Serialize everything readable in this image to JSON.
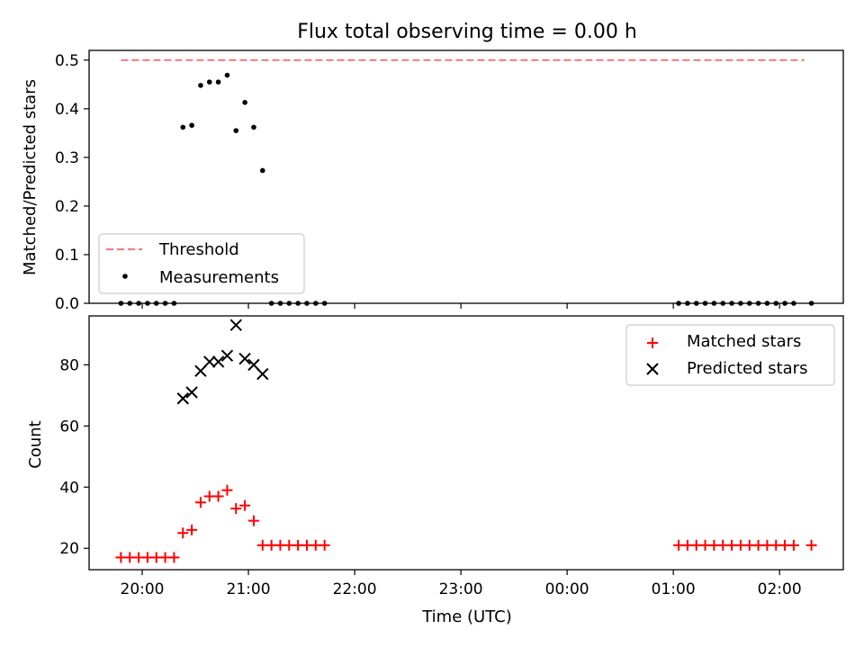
{
  "chart_data": [
    {
      "type": "scatter",
      "title": "Flux total observing time = 0.00 h",
      "ylabel": "Matched/Predicted stars",
      "xlabel": "",
      "x_ticks": [
        "20:00",
        "21:00",
        "22:00",
        "23:00",
        "00:00",
        "01:00",
        "02:00"
      ],
      "y_ticks": [
        "0.0",
        "0.1",
        "0.2",
        "0.3",
        "0.4",
        "0.5"
      ],
      "ylim": [
        0,
        0.52
      ],
      "x_range_hours": [
        19.5,
        26.6
      ],
      "threshold": {
        "name": "Threshold",
        "value": 0.5,
        "x_from": "19:48",
        "x_to": "02:14",
        "color": "#f08080"
      },
      "series": [
        {
          "name": "Measurements",
          "color": "#000000",
          "points": [
            [
              "19:48",
              0.0
            ],
            [
              "19:53",
              0.0
            ],
            [
              "19:58",
              0.0
            ],
            [
              "20:03",
              0.0
            ],
            [
              "20:08",
              0.0
            ],
            [
              "20:13",
              0.0
            ],
            [
              "20:18",
              0.0
            ],
            [
              "20:23",
              0.362
            ],
            [
              "20:28",
              0.366
            ],
            [
              "20:33",
              0.448
            ],
            [
              "20:38",
              0.455
            ],
            [
              "20:43",
              0.455
            ],
            [
              "20:48",
              0.469
            ],
            [
              "20:53",
              0.355
            ],
            [
              "20:58",
              0.413
            ],
            [
              "21:03",
              0.362
            ],
            [
              "21:08",
              0.273
            ],
            [
              "21:13",
              0.0
            ],
            [
              "21:18",
              0.0
            ],
            [
              "21:23",
              0.0
            ],
            [
              "21:28",
              0.0
            ],
            [
              "21:33",
              0.0
            ],
            [
              "21:38",
              0.0
            ],
            [
              "21:43",
              0.0
            ],
            [
              "01:03",
              0.0
            ],
            [
              "01:08",
              0.0
            ],
            [
              "01:13",
              0.0
            ],
            [
              "01:18",
              0.0
            ],
            [
              "01:23",
              0.0
            ],
            [
              "01:28",
              0.0
            ],
            [
              "01:33",
              0.0
            ],
            [
              "01:38",
              0.0
            ],
            [
              "01:43",
              0.0
            ],
            [
              "01:48",
              0.0
            ],
            [
              "01:53",
              0.0
            ],
            [
              "01:58",
              0.0
            ],
            [
              "02:03",
              0.0
            ],
            [
              "02:08",
              0.0
            ],
            [
              "02:18",
              0.0
            ]
          ]
        }
      ],
      "legend": {
        "placement": "lower-left",
        "entries": [
          "Threshold",
          "Measurements"
        ]
      }
    },
    {
      "type": "scatter",
      "title": "",
      "ylabel": "Count",
      "xlabel": "Time (UTC)",
      "x_ticks": [
        "20:00",
        "21:00",
        "22:00",
        "23:00",
        "00:00",
        "01:00",
        "02:00"
      ],
      "y_ticks": [
        "20",
        "40",
        "60",
        "80"
      ],
      "ylim": [
        13,
        96
      ],
      "x_range_hours": [
        19.5,
        26.6
      ],
      "series": [
        {
          "name": "Matched stars",
          "color": "#ff0000",
          "marker": "plus",
          "points": [
            [
              "19:48",
              17
            ],
            [
              "19:53",
              17
            ],
            [
              "19:58",
              17
            ],
            [
              "20:03",
              17
            ],
            [
              "20:08",
              17
            ],
            [
              "20:13",
              17
            ],
            [
              "20:18",
              17
            ],
            [
              "20:23",
              25
            ],
            [
              "20:28",
              26
            ],
            [
              "20:33",
              35
            ],
            [
              "20:38",
              37
            ],
            [
              "20:43",
              37
            ],
            [
              "20:48",
              39
            ],
            [
              "20:53",
              33
            ],
            [
              "20:58",
              34
            ],
            [
              "21:03",
              29
            ],
            [
              "21:08",
              21
            ],
            [
              "21:13",
              21
            ],
            [
              "21:18",
              21
            ],
            [
              "21:23",
              21
            ],
            [
              "21:28",
              21
            ],
            [
              "21:33",
              21
            ],
            [
              "21:38",
              21
            ],
            [
              "21:43",
              21
            ],
            [
              "01:03",
              21
            ],
            [
              "01:08",
              21
            ],
            [
              "01:13",
              21
            ],
            [
              "01:18",
              21
            ],
            [
              "01:23",
              21
            ],
            [
              "01:28",
              21
            ],
            [
              "01:33",
              21
            ],
            [
              "01:38",
              21
            ],
            [
              "01:43",
              21
            ],
            [
              "01:48",
              21
            ],
            [
              "01:53",
              21
            ],
            [
              "01:58",
              21
            ],
            [
              "02:03",
              21
            ],
            [
              "02:08",
              21
            ],
            [
              "02:18",
              21
            ]
          ]
        },
        {
          "name": "Predicted stars",
          "color": "#000000",
          "marker": "x",
          "points": [
            [
              "20:23",
              69
            ],
            [
              "20:28",
              71
            ],
            [
              "20:33",
              78
            ],
            [
              "20:38",
              81
            ],
            [
              "20:43",
              81
            ],
            [
              "20:48",
              83
            ],
            [
              "20:53",
              93
            ],
            [
              "20:58",
              82
            ],
            [
              "21:03",
              80
            ],
            [
              "21:08",
              77
            ]
          ]
        }
      ],
      "legend": {
        "placement": "top-right",
        "entries": [
          "Matched stars",
          "Predicted stars"
        ]
      }
    }
  ]
}
